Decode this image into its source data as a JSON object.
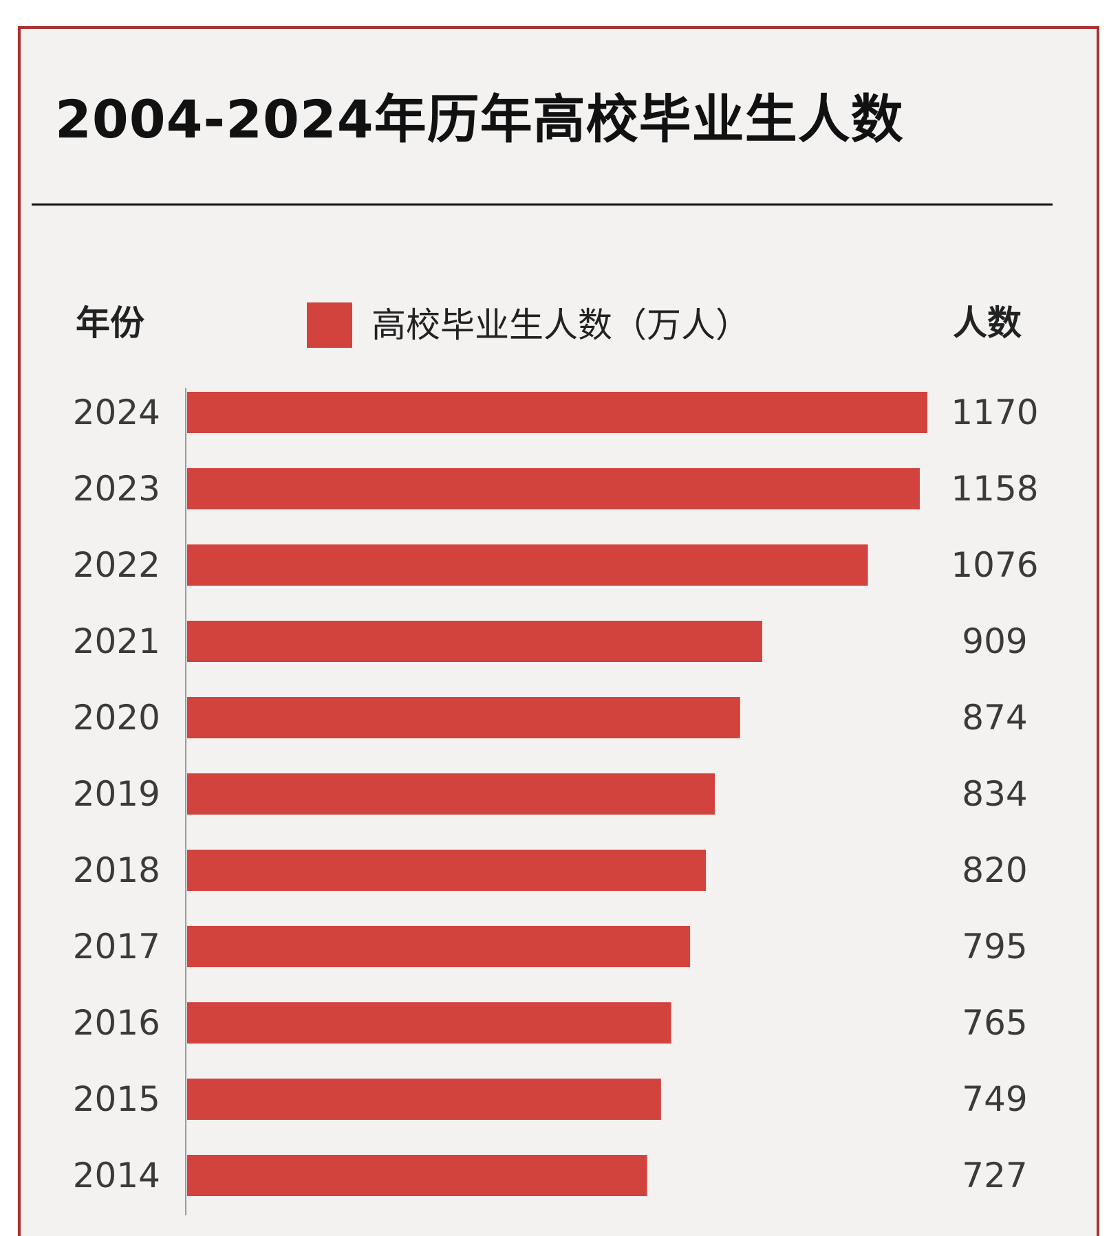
{
  "chart_data": {
    "type": "bar",
    "orientation": "horizontal",
    "title": "2004-2024年历年高校毕业生人数",
    "ylabel": "年份",
    "value_column_label": "人数",
    "legend": "高校毕业生人数（万人）",
    "categories": [
      "2024",
      "2023",
      "2022",
      "2021",
      "2020",
      "2019",
      "2018",
      "2017",
      "2016",
      "2015",
      "2014"
    ],
    "values": [
      1170,
      1158,
      1076,
      909,
      874,
      834,
      820,
      795,
      765,
      749,
      727
    ],
    "bar_color": "#d2433d",
    "xlim": [
      0,
      1170
    ],
    "grid": false
  }
}
